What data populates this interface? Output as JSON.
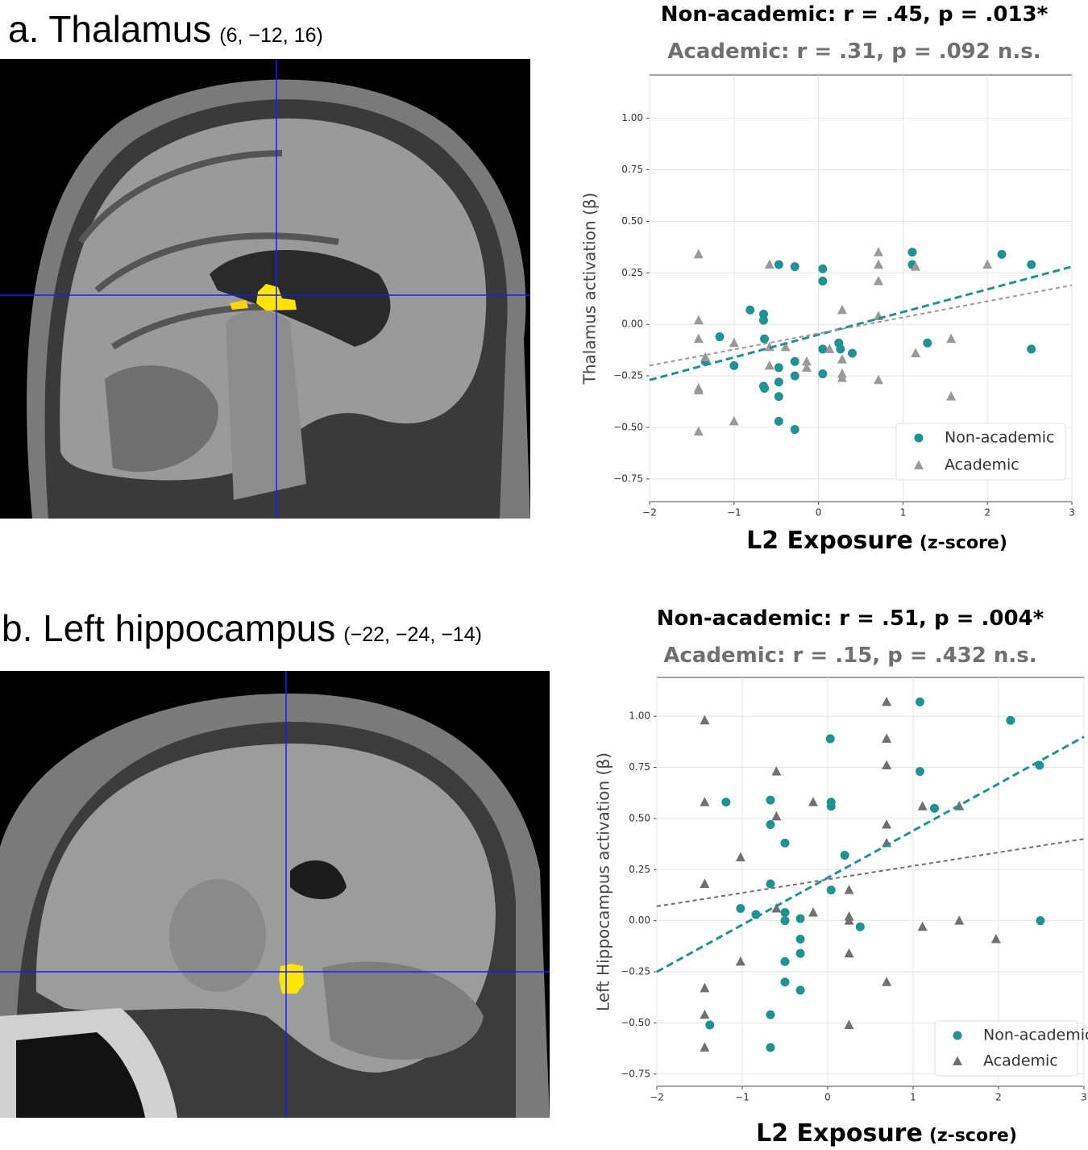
{
  "panels": [
    {
      "label": "a. Thalamus",
      "coords": "(6, −12, 16)"
    },
    {
      "label": "b. Left hippocampus",
      "coords": "(−22, −24, −14)"
    }
  ],
  "chart_data": [
    {
      "type": "scatter",
      "title": "Non-academic: r = .45, p = .013*",
      "subtitle": "Academic: r = .31, p = .092 n.s.",
      "xlabel": "L2 Exposure",
      "xlabel_unit": "(z-score)",
      "ylabel": "Thalamus activation (β)",
      "xlim": [
        -2,
        3
      ],
      "ylim": [
        -0.86,
        1.21
      ],
      "xticks": [
        {
          "value": -2,
          "label": "−2"
        },
        {
          "value": -1,
          "label": "−1"
        },
        0,
        1,
        2,
        3
      ],
      "yticks": [
        {
          "value": -0.75,
          "label": "−0.75"
        },
        {
          "value": -0.5,
          "label": "−0.50"
        },
        {
          "value": -0.25,
          "label": "−0.25"
        },
        {
          "value": 0,
          "label": "0.00"
        },
        0.25,
        {
          "value": 0.5,
          "label": "0.50"
        },
        0.75,
        {
          "value": 1,
          "label": "1.00"
        }
      ],
      "grid": true,
      "legend": "lower right",
      "series": [
        {
          "name": "Non-academic",
          "color": "#1f9292",
          "marker": "circle",
          "x": [
            -0.81,
            -1.17,
            -1.34,
            -1.0,
            -0.65,
            -0.65,
            -0.64,
            -0.65,
            -0.64,
            -0.47,
            -0.47,
            -0.47,
            -0.47,
            -0.47,
            -0.28,
            -0.28,
            -0.28,
            -0.28,
            0.05,
            0.05,
            0.05,
            0.05,
            0.24,
            0.26,
            0.4,
            1.11,
            1.11,
            1.29,
            2.17,
            2.52,
            2.52
          ],
          "values": [
            0.07,
            -0.06,
            -0.18,
            -0.2,
            0.05,
            0.02,
            -0.07,
            -0.3,
            -0.31,
            0.29,
            -0.21,
            -0.28,
            -0.35,
            -0.47,
            0.28,
            -0.18,
            -0.25,
            -0.51,
            0.27,
            0.21,
            -0.12,
            -0.24,
            -0.09,
            -0.12,
            -0.14,
            0.35,
            0.29,
            -0.09,
            0.34,
            0.29,
            -0.12
          ],
          "trend": {
            "x": [
              -2,
              3
            ],
            "y": [
              -0.27,
              0.28
            ]
          }
        },
        {
          "name": "Academic",
          "color": "#9a9a9a",
          "marker": "triangle",
          "x": [
            -1.42,
            -1.42,
            -1.42,
            -1.42,
            -1.42,
            -1.42,
            -1.34,
            -1.0,
            -1.0,
            -0.58,
            -0.58,
            -0.58,
            -0.39,
            -0.14,
            -0.14,
            0.13,
            0.28,
            0.28,
            0.28,
            0.28,
            0.71,
            0.71,
            0.71,
            0.71,
            0.71,
            1.15,
            1.15,
            1.57,
            1.57,
            2.0
          ],
          "values": [
            0.34,
            0.02,
            -0.07,
            -0.31,
            -0.32,
            -0.52,
            -0.16,
            -0.09,
            -0.47,
            0.29,
            -0.11,
            -0.2,
            -0.11,
            -0.18,
            -0.21,
            -0.12,
            0.07,
            -0.17,
            -0.24,
            -0.26,
            0.35,
            0.29,
            0.21,
            0.04,
            -0.27,
            0.28,
            -0.14,
            -0.07,
            -0.35,
            0.29
          ],
          "trend": {
            "x": [
              -2,
              3
            ],
            "y": [
              -0.2,
              0.19
            ]
          }
        }
      ]
    },
    {
      "type": "scatter",
      "title": "Non-academic: r =  .51, p =  .004*",
      "subtitle": "Academic: r = .15, p = .432 n.s.",
      "xlabel": "L2 Exposure",
      "xlabel_unit": "(z-score)",
      "ylabel": "Left Hippocampus activation (β)",
      "xlim": [
        -2,
        3
      ],
      "ylim": [
        -0.81,
        1.19
      ],
      "xticks": [
        {
          "value": -2,
          "label": "−2"
        },
        {
          "value": -1,
          "label": "−1"
        },
        0,
        1,
        2,
        3
      ],
      "yticks": [
        {
          "value": -0.75,
          "label": "−0.75"
        },
        {
          "value": -0.5,
          "label": "−0.50"
        },
        {
          "value": -0.25,
          "label": "−0.25"
        },
        {
          "value": 0,
          "label": "0.00"
        },
        0.25,
        {
          "value": 0.5,
          "label": "0.50"
        },
        0.75,
        {
          "value": 1,
          "label": "1.00"
        }
      ],
      "grid": true,
      "legend": "lower right",
      "series": [
        {
          "name": "Non-academic",
          "color": "#1f9292",
          "marker": "circle",
          "x": [
            -1.38,
            -1.19,
            -1.02,
            -0.84,
            -0.67,
            -0.67,
            -0.67,
            -0.67,
            -0.67,
            -0.5,
            -0.5,
            -0.5,
            -0.5,
            -0.5,
            -0.32,
            -0.32,
            -0.32,
            -0.32,
            0.03,
            0.04,
            0.04,
            0.04,
            0.2,
            0.38,
            1.08,
            1.08,
            1.25,
            2.14,
            2.48,
            2.49
          ],
          "values": [
            -0.51,
            0.58,
            0.06,
            0.03,
            0.59,
            0.47,
            0.18,
            -0.46,
            -0.62,
            0.38,
            0.04,
            0.0,
            -0.2,
            -0.3,
            0.01,
            -0.09,
            -0.16,
            -0.34,
            0.89,
            0.58,
            0.56,
            0.15,
            0.32,
            -0.03,
            1.07,
            0.73,
            0.55,
            0.98,
            0.76,
            0.0
          ],
          "trend": {
            "x": [
              -2,
              3
            ],
            "y": [
              -0.25,
              0.9
            ]
          }
        },
        {
          "name": "Academic",
          "color": "#707070",
          "marker": "triangle",
          "x": [
            -1.44,
            -1.44,
            -1.44,
            -1.44,
            -1.44,
            -1.44,
            -1.02,
            -1.02,
            -0.6,
            -0.6,
            -0.6,
            -0.17,
            -0.17,
            0.25,
            0.25,
            0.25,
            0.25,
            0.25,
            0.69,
            0.69,
            0.69,
            0.69,
            0.69,
            0.69,
            1.11,
            1.11,
            1.54,
            1.54,
            1.97
          ],
          "values": [
            0.98,
            0.58,
            0.18,
            -0.33,
            -0.46,
            -0.62,
            0.31,
            -0.2,
            0.73,
            0.51,
            0.06,
            0.58,
            0.04,
            0.15,
            0.02,
            0.0,
            -0.16,
            -0.51,
            1.07,
            0.89,
            0.76,
            0.47,
            0.38,
            -0.3,
            0.56,
            -0.03,
            0.56,
            0.0,
            -0.09
          ],
          "trend": {
            "x": [
              -2,
              3
            ],
            "y": [
              0.07,
              0.4
            ]
          }
        }
      ]
    }
  ]
}
